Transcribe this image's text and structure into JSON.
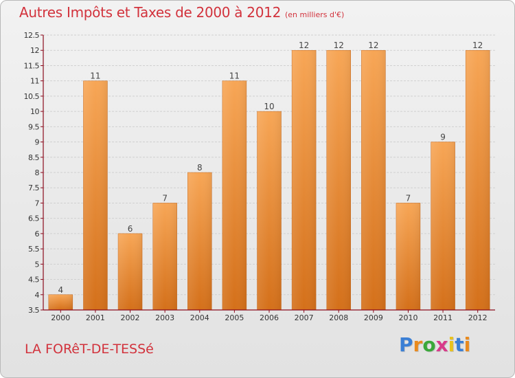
{
  "header": {
    "title": "Autres Impôts et Taxes de 2000 à 2012",
    "unit": "(en milliers d'€)"
  },
  "footer": {
    "place": "LA FORêT-DE-TESSé",
    "logo_letters": [
      "P",
      "r",
      "o",
      "x",
      "i",
      "t",
      "i"
    ],
    "logo_colors": [
      "#3a7fd5",
      "#e98a1e",
      "#3aa83a",
      "#d83a8a",
      "#e9c21e",
      "#3a7fd5",
      "#e98a1e"
    ]
  },
  "colors": {
    "title": "#d2323c",
    "bar_light": "#f7a656",
    "bar_dark": "#d4701a",
    "axis": "#8b0a1c"
  },
  "chart_data": {
    "type": "bar",
    "categories": [
      "2000",
      "2001",
      "2002",
      "2003",
      "2004",
      "2005",
      "2006",
      "2007",
      "2008",
      "2009",
      "2010",
      "2011",
      "2012"
    ],
    "values": [
      4,
      11,
      6,
      7,
      8,
      11,
      10,
      12,
      12,
      12,
      7,
      9,
      12
    ],
    "ylim": [
      3.5,
      12.5
    ],
    "yticks": [
      "3.5",
      "4",
      "4.5",
      "5",
      "5.5",
      "6",
      "6.5",
      "7",
      "7.5",
      "8",
      "8.5",
      "9",
      "9.5",
      "10",
      "10.5",
      "11",
      "11.5",
      "12",
      "12.5"
    ],
    "grid": true
  }
}
